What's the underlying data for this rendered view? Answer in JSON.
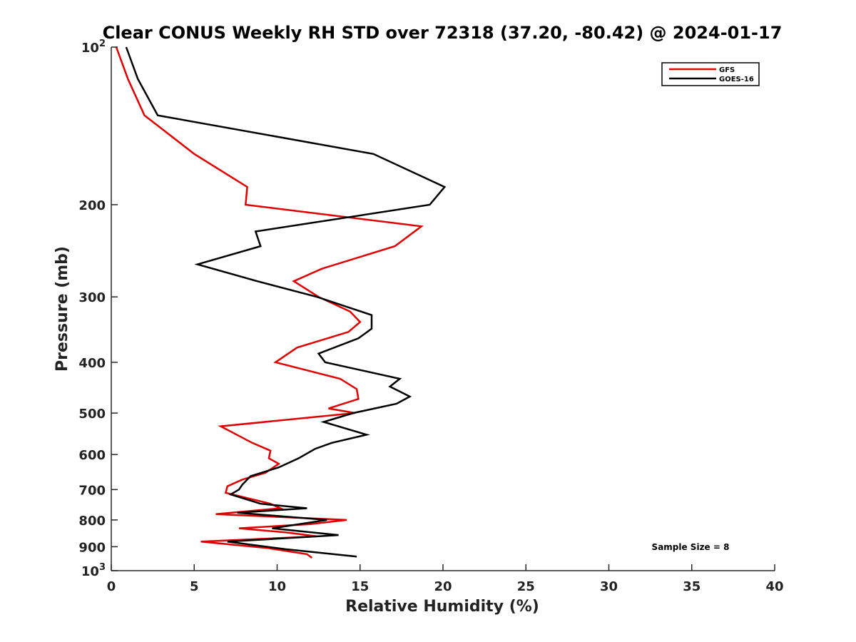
{
  "chart_data": {
    "type": "line",
    "title": "Clear CONUS Weekly RH STD over 72318 (37.20, -80.42) @ 2024-01-17",
    "xlabel": "Relative Humidity (%)",
    "ylabel": "Pressure (mb)",
    "xlim": [
      0,
      40
    ],
    "ylim": [
      100,
      1000
    ],
    "y_scale": "log",
    "y_reversed": true,
    "x_ticks": [
      0,
      5,
      10,
      15,
      20,
      25,
      30,
      35,
      40
    ],
    "y_ticks": [
      {
        "value": 100,
        "base": "10",
        "exp": "2"
      },
      {
        "value": 200,
        "label": "200"
      },
      {
        "value": 300,
        "label": "300"
      },
      {
        "value": 400,
        "label": "400"
      },
      {
        "value": 500,
        "label": "500"
      },
      {
        "value": 600,
        "label": "600"
      },
      {
        "value": 700,
        "label": "700"
      },
      {
        "value": 800,
        "label": "800"
      },
      {
        "value": 900,
        "label": "900"
      },
      {
        "value": 1000,
        "base": "10",
        "exp": "3"
      }
    ],
    "grid": false,
    "legend_position": "top-right",
    "annotation": "Sample Size = 8",
    "series": [
      {
        "name": "GFS",
        "color": "#e00000",
        "points": [
          [
            0.3,
            100
          ],
          [
            1.0,
            115
          ],
          [
            2.0,
            135
          ],
          [
            5.0,
            160
          ],
          [
            8.2,
            185
          ],
          [
            8.1,
            200
          ],
          [
            18.7,
            220
          ],
          [
            17.1,
            240
          ],
          [
            12.7,
            265
          ],
          [
            11.0,
            280
          ],
          [
            12.5,
            300
          ],
          [
            14.4,
            320
          ],
          [
            15.0,
            335
          ],
          [
            14.3,
            350
          ],
          [
            11.2,
            375
          ],
          [
            9.9,
            400
          ],
          [
            13.8,
            430
          ],
          [
            14.8,
            450
          ],
          [
            14.9,
            470
          ],
          [
            13.1,
            490
          ],
          [
            14.7,
            500
          ],
          [
            6.6,
            530
          ],
          [
            8.5,
            570
          ],
          [
            9.6,
            590
          ],
          [
            9.5,
            610
          ],
          [
            10.1,
            625
          ],
          [
            9.3,
            650
          ],
          [
            7.9,
            670
          ],
          [
            7.0,
            690
          ],
          [
            6.9,
            710
          ],
          [
            9.6,
            745
          ],
          [
            10.2,
            760
          ],
          [
            6.3,
            780
          ],
          [
            14.2,
            800
          ],
          [
            12.0,
            815
          ],
          [
            7.7,
            830
          ],
          [
            10.5,
            845
          ],
          [
            12.4,
            860
          ],
          [
            5.4,
            880
          ],
          [
            9.4,
            905
          ],
          [
            11.8,
            930
          ],
          [
            12.1,
            945
          ]
        ]
      },
      {
        "name": "GOES-16",
        "color": "#000000",
        "points": [
          [
            0.9,
            100
          ],
          [
            1.6,
            115
          ],
          [
            2.8,
            135
          ],
          [
            15.8,
            160
          ],
          [
            20.1,
            185
          ],
          [
            19.2,
            200
          ],
          [
            8.7,
            225
          ],
          [
            9.0,
            240
          ],
          [
            5.2,
            260
          ],
          [
            8.8,
            280
          ],
          [
            12.4,
            300
          ],
          [
            15.7,
            325
          ],
          [
            15.7,
            345
          ],
          [
            14.9,
            360
          ],
          [
            12.5,
            385
          ],
          [
            12.9,
            400
          ],
          [
            17.4,
            430
          ],
          [
            16.8,
            445
          ],
          [
            18.0,
            465
          ],
          [
            17.2,
            480
          ],
          [
            14.6,
            500
          ],
          [
            12.8,
            520
          ],
          [
            15.4,
            550
          ],
          [
            13.3,
            570
          ],
          [
            12.3,
            585
          ],
          [
            11.3,
            610
          ],
          [
            10.1,
            635
          ],
          [
            8.4,
            660
          ],
          [
            7.9,
            685
          ],
          [
            7.7,
            700
          ],
          [
            7.2,
            715
          ],
          [
            9.0,
            745
          ],
          [
            11.8,
            760
          ],
          [
            7.6,
            775
          ],
          [
            13.0,
            800
          ],
          [
            9.7,
            830
          ],
          [
            13.7,
            855
          ],
          [
            7.0,
            880
          ],
          [
            10.5,
            910
          ],
          [
            14.8,
            940
          ]
        ]
      }
    ]
  }
}
